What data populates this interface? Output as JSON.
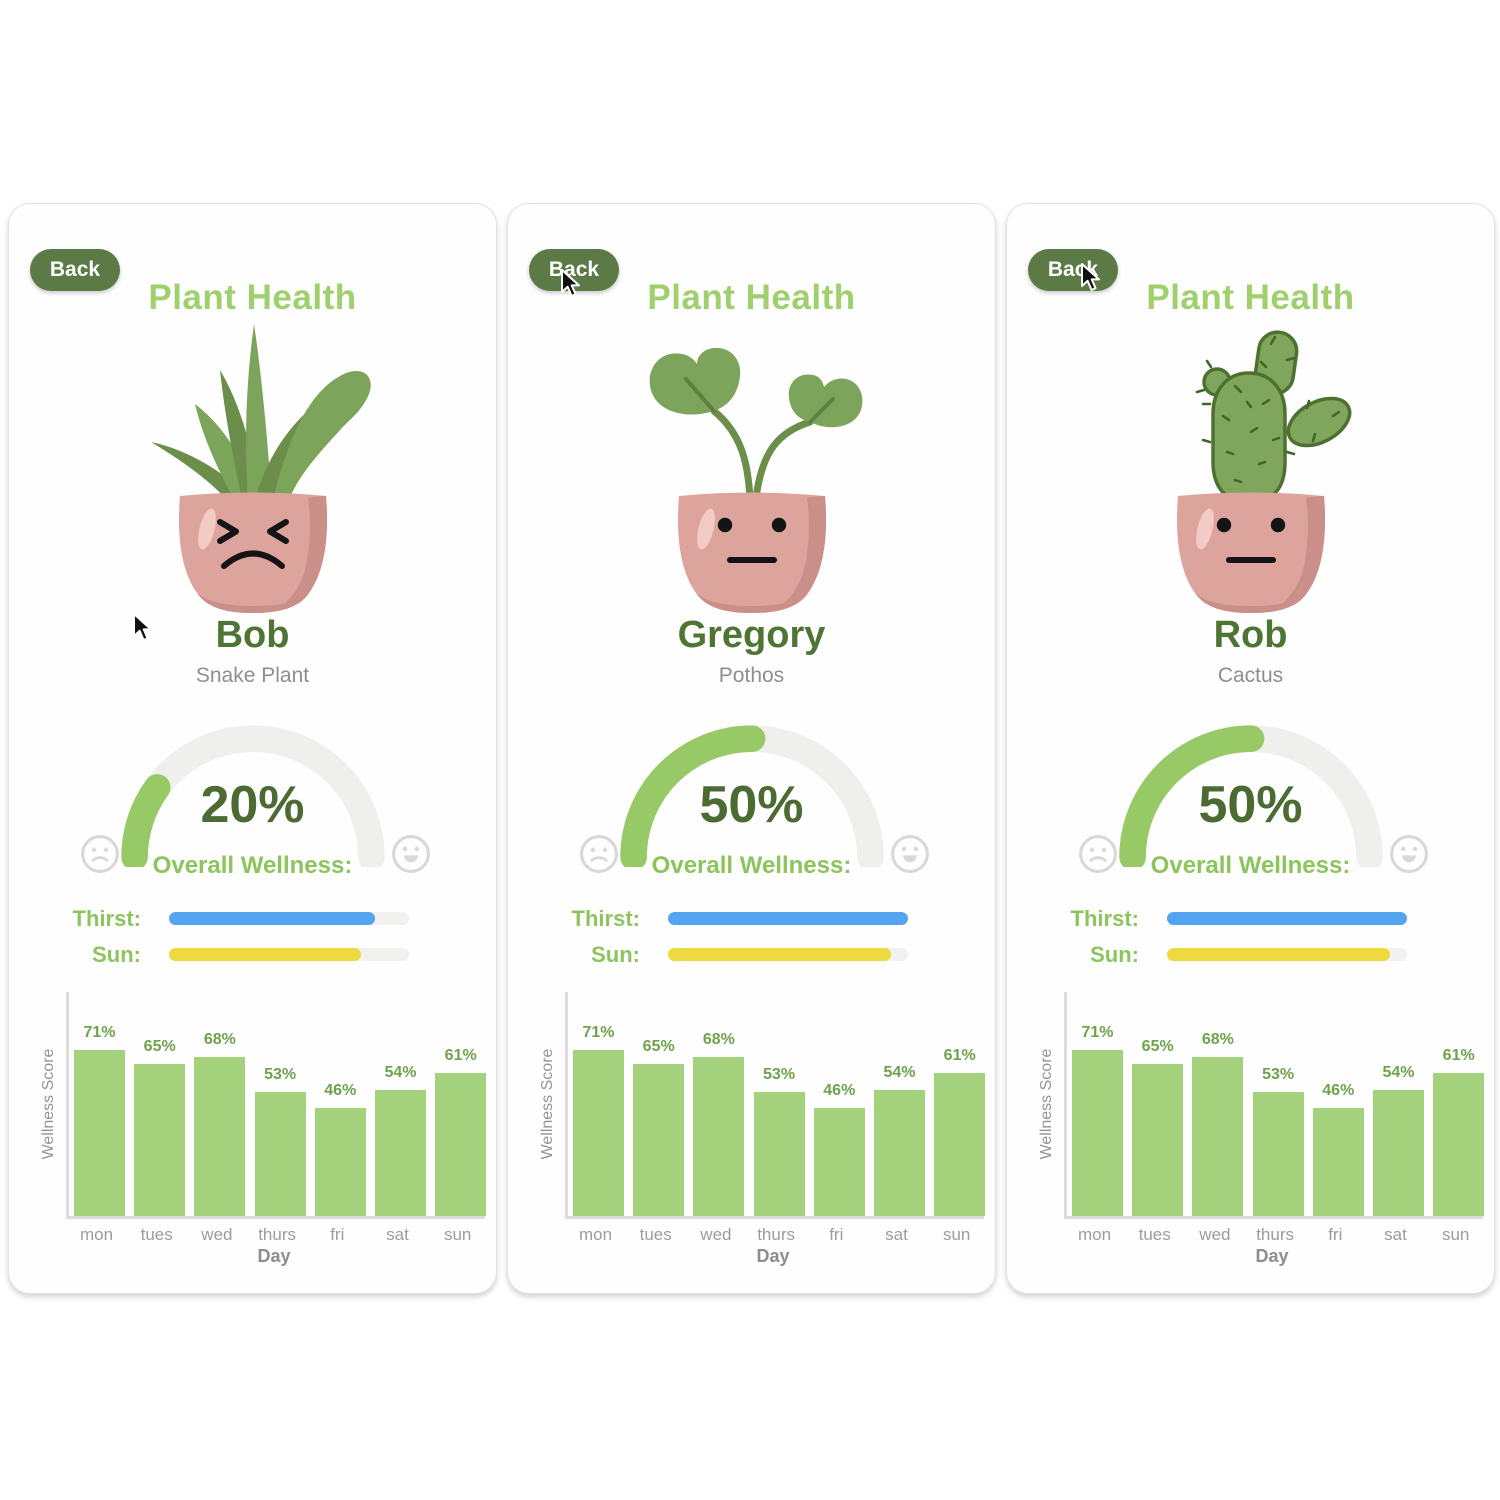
{
  "back_label": "Back",
  "title": "Plant Health",
  "gauge": {
    "label": "Overall Wellness:",
    "left_emoji": "sad-face",
    "right_emoji": "happy-face"
  },
  "meters": {
    "thirst_label": "Thirst:",
    "sun_label": "Sun:"
  },
  "panels": [
    {
      "name": "Bob",
      "species": "Snake Plant",
      "plant": "snake-plant",
      "mood": "sad",
      "wellness_percent": 20,
      "wellness_display": "20%",
      "thirst_percent": 86,
      "sun_percent": 80
    },
    {
      "name": "Gregory",
      "species": "Pothos",
      "plant": "pothos",
      "mood": "neutral",
      "wellness_percent": 50,
      "wellness_display": "50%",
      "thirst_percent": 100,
      "sun_percent": 93
    },
    {
      "name": "Rob",
      "species": "Cactus",
      "plant": "cactus",
      "mood": "neutral",
      "wellness_percent": 50,
      "wellness_display": "50%",
      "thirst_percent": 100,
      "sun_percent": 93
    }
  ],
  "chart_data": {
    "type": "bar",
    "title": "",
    "categories": [
      "mon",
      "tues",
      "wed",
      "thurs",
      "fri",
      "sat",
      "sun"
    ],
    "values": [
      71,
      65,
      68,
      53,
      46,
      54,
      61
    ],
    "value_labels": [
      "71%",
      "65%",
      "68%",
      "53%",
      "46%",
      "54%",
      "61%"
    ],
    "xlabel": "Day",
    "ylabel": "Wellness Score",
    "ylim": [
      0,
      100
    ],
    "grid": false,
    "legend": "none"
  },
  "colors": {
    "back_button": "#5b7a45",
    "title_green": "#9fd06d",
    "dark_green": "#4e7534",
    "value_green": "#4c6b33",
    "label_green": "#8cc45e",
    "gauge_green": "#97c966",
    "gauge_track": "#efefed",
    "thirst_blue": "#55a4f1",
    "sun_yellow": "#eed93f",
    "bar_green": "#a4d17b",
    "bar_label_green": "#6fa24c",
    "pot_pink": "#dda49e",
    "pot_shade": "#c98f88",
    "leaf_green": "#7da45b",
    "leaf_dark": "#6b8e4b"
  }
}
